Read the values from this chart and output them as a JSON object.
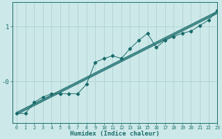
{
  "xlabel": "Humidex (Indice chaleur)",
  "bg_color": "#cce8e8",
  "grid_color": "#aacfcf",
  "line_color": "#1a6b6b",
  "x_min": -0.5,
  "x_max": 23,
  "y_min": -0.75,
  "y_max": 1.45,
  "ytick_vals": [
    0.0,
    1.0
  ],
  "ytick_labels": [
    "-0",
    "1"
  ],
  "xtick_vals": [
    0,
    1,
    2,
    3,
    4,
    5,
    6,
    7,
    8,
    9,
    10,
    11,
    12,
    13,
    14,
    15,
    16,
    17,
    18,
    19,
    20,
    21,
    22,
    23
  ],
  "reg_line1": [
    -0.58,
    -0.5,
    -0.42,
    -0.34,
    -0.26,
    -0.18,
    -0.1,
    -0.02,
    0.06,
    0.14,
    0.22,
    0.3,
    0.38,
    0.46,
    0.54,
    0.62,
    0.7,
    0.78,
    0.86,
    0.94,
    1.02,
    1.1,
    1.18,
    1.26
  ],
  "reg_line2": [
    -0.6,
    -0.52,
    -0.44,
    -0.36,
    -0.28,
    -0.2,
    -0.12,
    -0.04,
    0.04,
    0.12,
    0.2,
    0.28,
    0.36,
    0.44,
    0.52,
    0.6,
    0.68,
    0.76,
    0.84,
    0.92,
    1.0,
    1.08,
    1.16,
    1.24
  ],
  "reg_line3": [
    -0.56,
    -0.48,
    -0.4,
    -0.32,
    -0.24,
    -0.16,
    -0.08,
    0.0,
    0.08,
    0.16,
    0.24,
    0.32,
    0.4,
    0.48,
    0.56,
    0.64,
    0.72,
    0.8,
    0.88,
    0.96,
    1.04,
    1.12,
    1.2,
    1.28
  ],
  "scatter_x": [
    0,
    1,
    2,
    3,
    4,
    5,
    6,
    7,
    8,
    9,
    10,
    11,
    12,
    13,
    14,
    15,
    16,
    17,
    18,
    19,
    20,
    21,
    22,
    23
  ],
  "scatter_y": [
    -0.58,
    -0.58,
    -0.38,
    -0.28,
    -0.22,
    -0.22,
    -0.22,
    -0.22,
    -0.05,
    0.35,
    0.42,
    0.47,
    0.42,
    0.6,
    0.75,
    0.88,
    0.62,
    0.75,
    0.82,
    0.88,
    0.92,
    1.02,
    1.12,
    1.3
  ]
}
